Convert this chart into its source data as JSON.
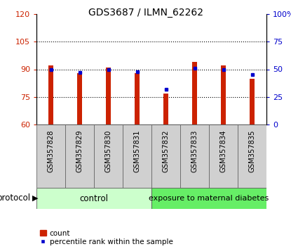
{
  "title": "GDS3687 / ILMN_62262",
  "samples": [
    "GSM357828",
    "GSM357829",
    "GSM357830",
    "GSM357831",
    "GSM357832",
    "GSM357833",
    "GSM357834",
    "GSM357835"
  ],
  "count_values": [
    92,
    88,
    91,
    88,
    77,
    94,
    92,
    85
  ],
  "percentile_values": [
    50,
    47,
    50,
    48,
    32,
    51,
    50,
    45
  ],
  "ylim_left": [
    60,
    120
  ],
  "ylim_right": [
    0,
    100
  ],
  "yticks_left": [
    60,
    75,
    90,
    105,
    120
  ],
  "yticks_right": [
    0,
    25,
    50,
    75,
    100
  ],
  "ytick_labels_right": [
    "0",
    "25",
    "50",
    "75",
    "100%"
  ],
  "bar_color": "#cc2200",
  "dot_color": "#0000cc",
  "control_color": "#ccffcc",
  "diabetes_color": "#66ee66",
  "control_label": "control",
  "diabetes_label": "exposure to maternal diabetes",
  "protocol_label": "protocol",
  "legend_count": "count",
  "legend_percentile": "percentile rank within the sample",
  "bar_width": 0.15,
  "n_control": 4,
  "n_diabetes": 4,
  "figsize": [
    4.15,
    3.54
  ],
  "dpi": 100
}
